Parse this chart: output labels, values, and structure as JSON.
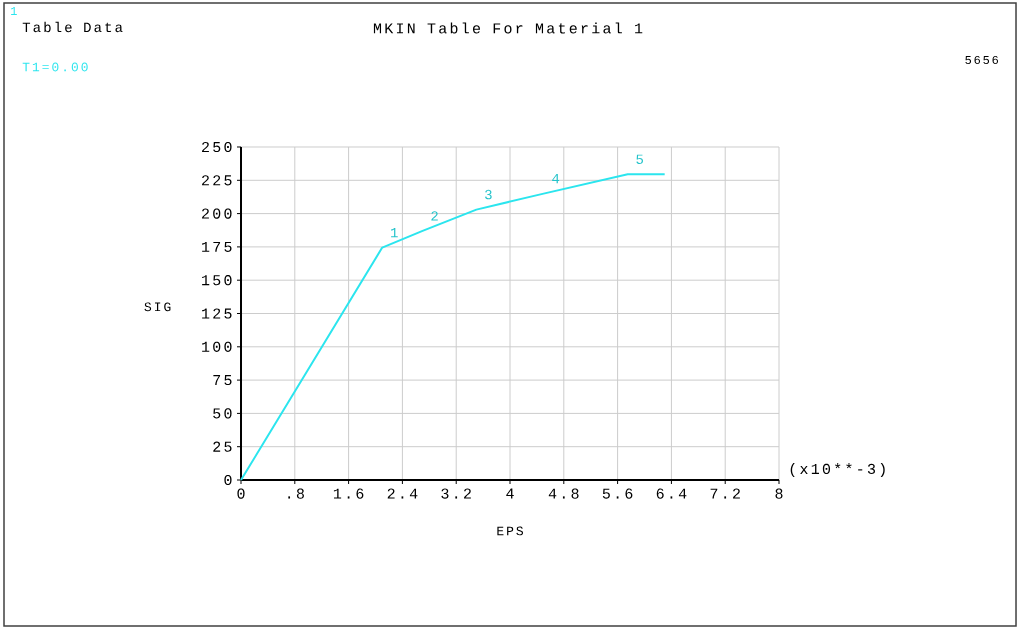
{
  "chart_data": {
    "type": "line",
    "title": "MKIN Table For Material 1",
    "xlabel": "EPS",
    "ylabel": "SIG",
    "x": [
      0,
      2.1,
      2.7,
      3.5,
      4.5,
      5.75,
      6.3
    ],
    "values": [
      0,
      174.5,
      187,
      203,
      215,
      229.5,
      229.5
    ],
    "color": "#2be5ee",
    "xlim": [
      0,
      8
    ],
    "ylim": [
      0,
      250
    ],
    "xticks": [
      0,
      {
        "value": 0.8,
        "label": ".8"
      },
      1.6,
      2.4,
      3.2,
      4,
      4.8,
      5.6,
      6.4,
      7.2,
      8
    ],
    "yticks": [
      0,
      25,
      50,
      75,
      100,
      125,
      150,
      175,
      200,
      225,
      250
    ],
    "grid": true,
    "marker": "none",
    "line_style": "solid",
    "annotations": [
      "1",
      "Table Data",
      "T1=0.00",
      "5656",
      "(x10**-3)",
      {
        "text": "1",
        "x": 2.1,
        "y": 174.5
      },
      {
        "text": "2",
        "x": 2.7,
        "y": 187
      },
      {
        "text": "3",
        "x": 3.5,
        "y": 203
      },
      {
        "text": "4",
        "x": 4.5,
        "y": 215
      },
      {
        "text": "5",
        "x": 5.75,
        "y": 229.5
      }
    ]
  }
}
